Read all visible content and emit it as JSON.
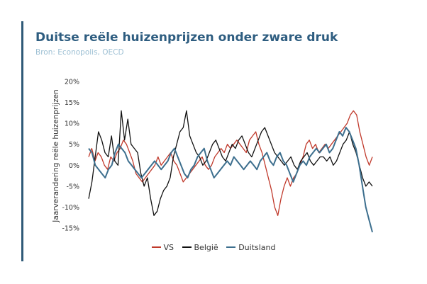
{
  "header": {
    "title": "Duitse reële huizenprijzen onder zware druk",
    "subtitle": "Bron: Econopolis, OECD"
  },
  "colors": {
    "accent_bar": "#2f5a78",
    "title": "#2e5d80",
    "subtitle": "#9cbfd3"
  },
  "chart_data": {
    "type": "line",
    "title": "Duitse reële huizenprijzen onder zware druk",
    "subtitle": "Bron: Econopolis, OECD",
    "ylabel": "Jaarverandering reële huizenprijzen",
    "xlabel": "",
    "ylim": [
      -15,
      20
    ],
    "yticks": [
      20,
      15,
      10,
      5,
      0,
      -5,
      -10,
      -15
    ],
    "ytick_labels": [
      "20%",
      "15%",
      "10%",
      "5%",
      "0%",
      "-5%",
      "-10%",
      "-15%"
    ],
    "x_count": 100,
    "grid": false,
    "legend": "bottom",
    "series": [
      {
        "name": "VS",
        "color": "#c0392b",
        "values": [
          2,
          4,
          1,
          3,
          2,
          0,
          -1,
          2,
          1,
          3,
          4,
          6,
          5,
          3,
          1,
          -2,
          -3,
          -4,
          -3,
          -2,
          -1,
          0,
          2,
          0,
          1,
          2,
          3,
          1,
          0,
          -2,
          -4,
          -3,
          -2,
          -1,
          0,
          1,
          2,
          0,
          -1,
          0,
          2,
          3,
          4,
          3,
          5,
          4,
          5,
          6,
          5,
          4,
          3,
          6,
          7,
          8,
          5,
          3,
          0,
          -3,
          -6,
          -10,
          -12,
          -8,
          -5,
          -3,
          -5,
          -3,
          -2,
          0,
          2,
          5,
          6,
          4,
          5,
          3,
          4,
          5,
          4,
          5,
          6,
          7,
          8,
          9,
          10,
          12,
          13,
          12,
          8,
          5,
          2,
          0,
          2
        ]
      },
      {
        "name": "België",
        "color": "#111111",
        "values": [
          -8,
          -4,
          2,
          8,
          6,
          3,
          2,
          7,
          1,
          0,
          13,
          6,
          11,
          5,
          4,
          3,
          -2,
          -5,
          -3,
          -8,
          -12,
          -11,
          -8,
          -6,
          -5,
          -3,
          2,
          5,
          8,
          9,
          13,
          7,
          5,
          3,
          2,
          0,
          1,
          3,
          5,
          6,
          4,
          2,
          1,
          3,
          5,
          4,
          6,
          7,
          5,
          3,
          2,
          4,
          6,
          8,
          9,
          7,
          5,
          3,
          2,
          1,
          0,
          1,
          2,
          0,
          -1,
          1,
          2,
          3,
          1,
          0,
          1,
          2,
          2,
          1,
          2,
          0,
          1,
          3,
          5,
          6,
          8,
          5,
          3,
          0,
          -3,
          -5,
          -4,
          -5
        ]
      },
      {
        "name": "Duitsland",
        "color": "#3d6f8e",
        "values": [
          4,
          3,
          0,
          -1,
          -2,
          -3,
          -1,
          0,
          3,
          5,
          4,
          3,
          1,
          0,
          -1,
          -2,
          -3,
          -2,
          -1,
          0,
          1,
          0,
          -1,
          0,
          1,
          3,
          4,
          2,
          0,
          -2,
          -3,
          -1,
          0,
          2,
          3,
          4,
          1,
          -1,
          -3,
          -2,
          -1,
          0,
          1,
          0,
          2,
          1,
          0,
          -1,
          0,
          1,
          0,
          -1,
          1,
          2,
          3,
          1,
          0,
          2,
          3,
          1,
          0,
          -2,
          -4,
          -2,
          0,
          1,
          0,
          2,
          3,
          4,
          3,
          4,
          5,
          3,
          4,
          6,
          8,
          7,
          9,
          8,
          6,
          4,
          0,
          -5,
          -10,
          -13,
          -16
        ]
      }
    ]
  }
}
